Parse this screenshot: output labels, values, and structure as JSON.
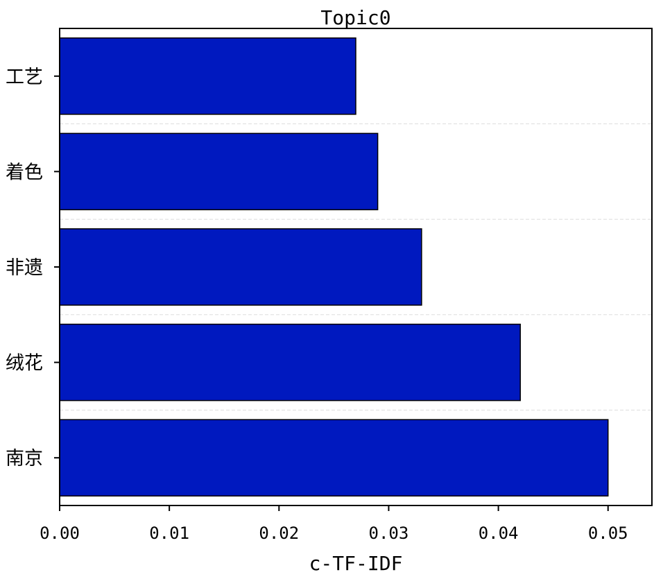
{
  "chart_data": {
    "type": "bar",
    "orientation": "horizontal",
    "title": "Topic0",
    "xlabel": "c-TF-IDF",
    "ylabel": "",
    "categories": [
      "工艺",
      "着色",
      "非遗",
      "绒花",
      "南京"
    ],
    "values": [
      0.027,
      0.029,
      0.033,
      0.042,
      0.05
    ],
    "xlim": [
      0,
      0.054
    ],
    "xticks": [
      0.0,
      0.01,
      0.02,
      0.03,
      0.04,
      0.05
    ],
    "xtick_labels": [
      "0.00",
      "0.01",
      "0.02",
      "0.03",
      "0.04",
      "0.05"
    ],
    "bar_color": "#0019BF",
    "bar_edge_color": "#000000",
    "grid": "horizontal dashed separators",
    "grid_color": "#dddddd",
    "legend": "none"
  }
}
